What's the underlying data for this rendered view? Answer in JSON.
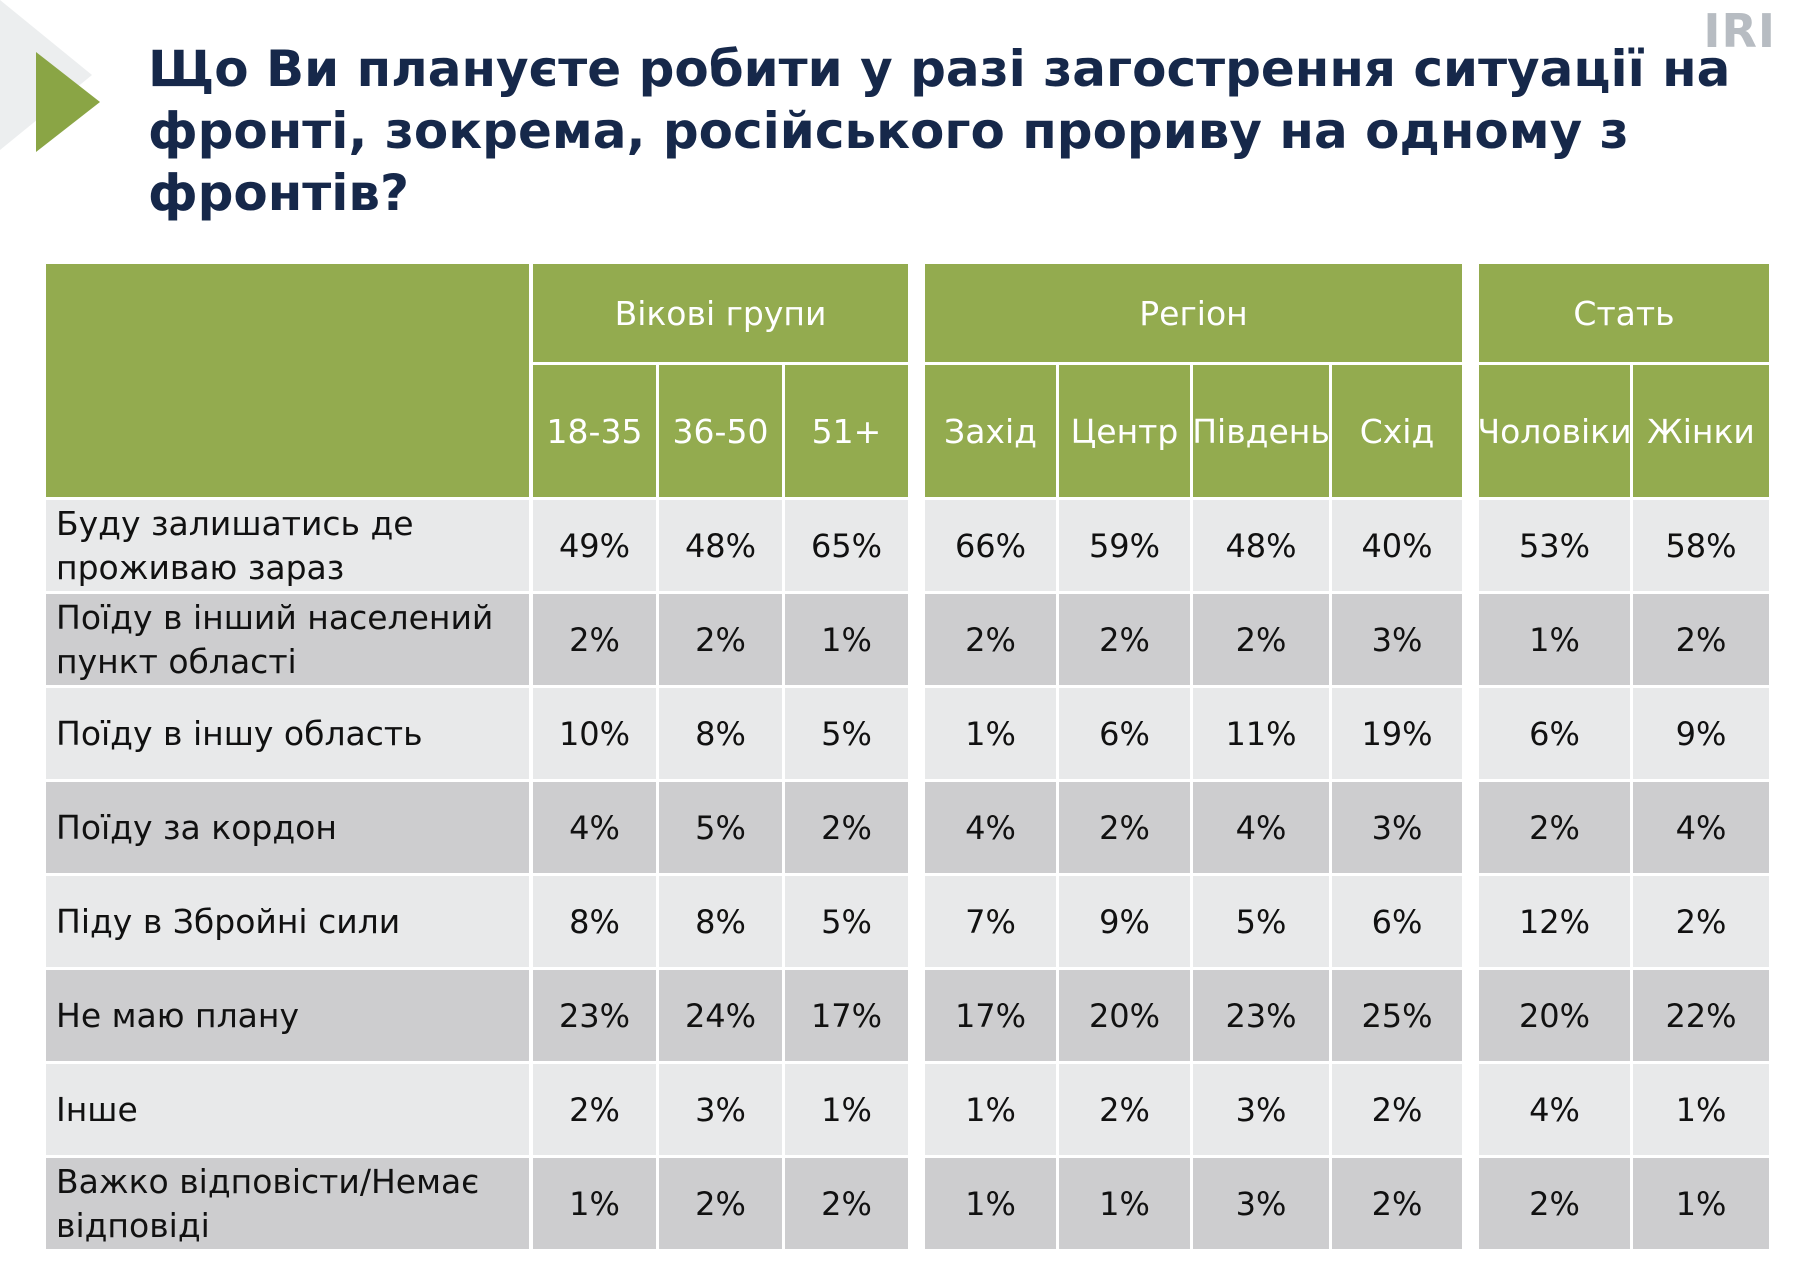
{
  "brand": "IRI",
  "title_lines": [
    "Що Ви плануєте робити у разі загострення ситуації на",
    "фронті, зокрема, російського прориву на одному з",
    "фронтів?"
  ],
  "colors": {
    "header_green": "#93ab4f",
    "title_navy": "#16284a",
    "row_light": "#e8e9ea",
    "row_dark": "#cdcdcf"
  },
  "chart_data": {
    "type": "table",
    "groups": [
      {
        "label": "Вікові групи",
        "columns": [
          "18-35",
          "36-50",
          "51+"
        ]
      },
      {
        "label": "Регіон",
        "columns": [
          "Захід",
          "Центр",
          "Південь",
          "Схід"
        ]
      },
      {
        "label": "Стать",
        "columns": [
          "Чоловіки",
          "Жінки"
        ]
      }
    ],
    "rows": [
      {
        "label": "Буду залишатись де проживаю зараз",
        "values": [
          "49%",
          "48%",
          "65%",
          "66%",
          "59%",
          "48%",
          "40%",
          "53%",
          "58%"
        ]
      },
      {
        "label": "Поїду в інший населений пункт області",
        "values": [
          "2%",
          "2%",
          "1%",
          "2%",
          "2%",
          "2%",
          "3%",
          "1%",
          "2%"
        ]
      },
      {
        "label": "Поїду в іншу область",
        "values": [
          "10%",
          "8%",
          "5%",
          "1%",
          "6%",
          "11%",
          "19%",
          "6%",
          "9%"
        ]
      },
      {
        "label": "Поїду за кордон",
        "values": [
          "4%",
          "5%",
          "2%",
          "4%",
          "2%",
          "4%",
          "3%",
          "2%",
          "4%"
        ]
      },
      {
        "label": "Піду в Збройні сили",
        "values": [
          "8%",
          "8%",
          "5%",
          "7%",
          "9%",
          "5%",
          "6%",
          "12%",
          "2%"
        ]
      },
      {
        "label": "Не маю плану",
        "values": [
          "23%",
          "24%",
          "17%",
          "17%",
          "20%",
          "23%",
          "25%",
          "20%",
          "22%"
        ]
      },
      {
        "label": "Інше",
        "values": [
          "2%",
          "3%",
          "1%",
          "1%",
          "2%",
          "3%",
          "2%",
          "4%",
          "1%"
        ]
      },
      {
        "label": "Важко відповісти/Немає відповіді",
        "values": [
          "1%",
          "2%",
          "2%",
          "1%",
          "1%",
          "3%",
          "2%",
          "2%",
          "1%"
        ]
      }
    ]
  }
}
